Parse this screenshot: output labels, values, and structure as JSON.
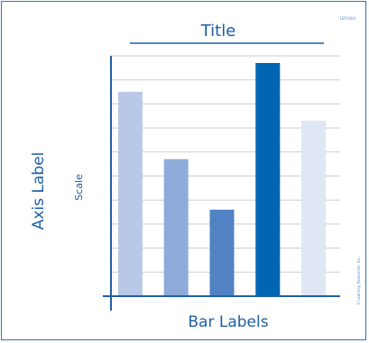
{
  "chart_data": {
    "type": "bar",
    "title": "Title",
    "ylabel": "Axis Label",
    "ylabel_secondary": "Scale",
    "xlabel": "Bar Labels",
    "categories": [
      "",
      "",
      "",
      "",
      ""
    ],
    "values": [
      8.5,
      5.7,
      3.6,
      9.7,
      7.3
    ],
    "ylim": [
      0,
      10
    ],
    "grid": true,
    "legend": "none",
    "bar_colors": [
      "#b9c8e6",
      "#8eabd9",
      "#5082c4",
      "#0066b3",
      "#dfe6f4"
    ],
    "axis_color": "#1f5fa6",
    "grid_color": "#c9cdd6",
    "frame_color": "#2f73b8",
    "corner_code": "LEP1904",
    "copyright": "© Learning Resources, Inc."
  }
}
